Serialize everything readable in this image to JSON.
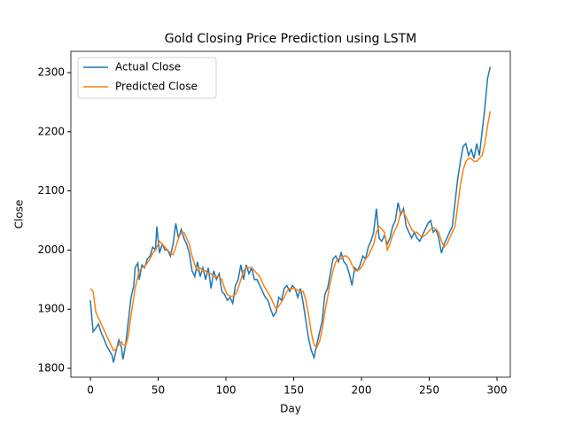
{
  "chart_data": {
    "type": "line",
    "title": "Gold Closing Price Prediction using LSTM",
    "x_label": "Day",
    "y_label": "Close",
    "x": [
      0,
      2,
      4,
      6,
      8,
      10,
      12,
      14,
      16,
      17,
      19,
      21,
      23,
      24,
      26,
      28,
      30,
      32,
      33,
      35,
      36,
      38,
      40,
      42,
      44,
      46,
      48,
      49,
      51,
      53,
      55,
      57,
      59,
      61,
      63,
      65,
      67,
      69,
      71,
      73,
      75,
      77,
      79,
      81,
      83,
      85,
      87,
      89,
      91,
      93,
      95,
      97,
      99,
      101,
      103,
      105,
      107,
      109,
      111,
      113,
      115,
      117,
      119,
      121,
      123,
      125,
      127,
      129,
      131,
      133,
      135,
      137,
      139,
      141,
      143,
      145,
      147,
      149,
      151,
      153,
      155,
      157,
      159,
      161,
      163,
      165,
      167,
      169,
      171,
      173,
      175,
      177,
      179,
      181,
      183,
      185,
      187,
      189,
      191,
      193,
      195,
      197,
      199,
      201,
      203,
      205,
      207,
      209,
      211,
      213,
      215,
      217,
      219,
      221,
      223,
      225,
      227,
      229,
      231,
      233,
      235,
      237,
      239,
      241,
      243,
      245,
      247,
      249,
      251,
      253,
      255,
      257,
      259,
      261,
      263,
      265,
      267,
      269,
      271,
      273,
      275,
      277,
      279,
      281,
      283,
      285,
      287,
      289,
      291,
      293,
      295
    ],
    "series": [
      {
        "name": "Actual Close",
        "color": "#1f77b4",
        "values": [
          1915,
          1862,
          1868,
          1875,
          1860,
          1850,
          1838,
          1830,
          1822,
          1810,
          1830,
          1848,
          1835,
          1815,
          1840,
          1880,
          1920,
          1940,
          1970,
          1978,
          1950,
          1975,
          1970,
          1985,
          1990,
          2005,
          2000,
          2040,
          1995,
          2010,
          2000,
          2000,
          1990,
          2010,
          2045,
          2020,
          2035,
          2020,
          2010,
          1995,
          1965,
          1955,
          1980,
          1955,
          1970,
          1950,
          1970,
          1935,
          1965,
          1950,
          1960,
          1930,
          1925,
          1915,
          1920,
          1910,
          1940,
          1950,
          1975,
          1950,
          1975,
          1960,
          1970,
          1950,
          1950,
          1940,
          1930,
          1920,
          1915,
          1900,
          1888,
          1895,
          1920,
          1915,
          1935,
          1940,
          1930,
          1940,
          1935,
          1920,
          1935,
          1910,
          1880,
          1850,
          1830,
          1818,
          1840,
          1860,
          1880,
          1925,
          1935,
          1960,
          1985,
          1990,
          1980,
          1995,
          1980,
          1975,
          1960,
          1940,
          1970,
          1965,
          1975,
          1990,
          1985,
          2005,
          2015,
          2030,
          2070,
          2020,
          2015,
          2025,
          2010,
          2020,
          2040,
          2050,
          2080,
          2060,
          2070,
          2040,
          2030,
          2020,
          2030,
          2020,
          2015,
          2025,
          2035,
          2045,
          2050,
          2030,
          2035,
          2020,
          1995,
          2010,
          2020,
          2030,
          2040,
          2080,
          2120,
          2150,
          2175,
          2180,
          2160,
          2170,
          2155,
          2180,
          2160,
          2200,
          2240,
          2290,
          2310
        ]
      },
      {
        "name": "Predicted Close",
        "color": "#ff7f0e",
        "values": [
          1935,
          1930,
          1895,
          1885,
          1875,
          1865,
          1855,
          1845,
          1835,
          1830,
          1833,
          1840,
          1845,
          1840,
          1838,
          1855,
          1890,
          1920,
          1935,
          1955,
          1965,
          1970,
          1972,
          1978,
          1985,
          1995,
          2000,
          2005,
          2015,
          2010,
          2005,
          2000,
          1995,
          1992,
          2005,
          2020,
          2030,
          2030,
          2020,
          2010,
          1990,
          1975,
          1965,
          1970,
          1965,
          1965,
          1960,
          1960,
          1955,
          1955,
          1955,
          1950,
          1935,
          1925,
          1922,
          1922,
          1925,
          1935,
          1950,
          1965,
          1970,
          1970,
          1970,
          1965,
          1960,
          1955,
          1945,
          1935,
          1928,
          1920,
          1910,
          1900,
          1905,
          1912,
          1920,
          1930,
          1935,
          1935,
          1935,
          1932,
          1930,
          1930,
          1915,
          1890,
          1860,
          1840,
          1835,
          1845,
          1865,
          1895,
          1920,
          1945,
          1965,
          1980,
          1985,
          1985,
          1990,
          1990,
          1985,
          1975,
          1965,
          1965,
          1968,
          1975,
          1985,
          1990,
          2000,
          2010,
          2030,
          2040,
          2035,
          2030,
          2000,
          2010,
          2025,
          2035,
          2045,
          2065,
          2065,
          2055,
          2045,
          2035,
          2030,
          2030,
          2025,
          2022,
          2025,
          2030,
          2035,
          2038,
          2035,
          2030,
          2015,
          2005,
          2010,
          2020,
          2030,
          2040,
          2075,
          2110,
          2135,
          2150,
          2155,
          2155,
          2150,
          2150,
          2155,
          2160,
          2180,
          2210,
          2235
        ]
      }
    ],
    "xlim": [
      -14.4,
      309.8
    ],
    "ylim": [
      1785,
      2336
    ],
    "xticks": [
      0,
      50,
      100,
      150,
      200,
      250,
      300
    ],
    "yticks": [
      1800,
      1900,
      2000,
      2100,
      2200,
      2300
    ],
    "legend": "upper left",
    "grid": false
  }
}
